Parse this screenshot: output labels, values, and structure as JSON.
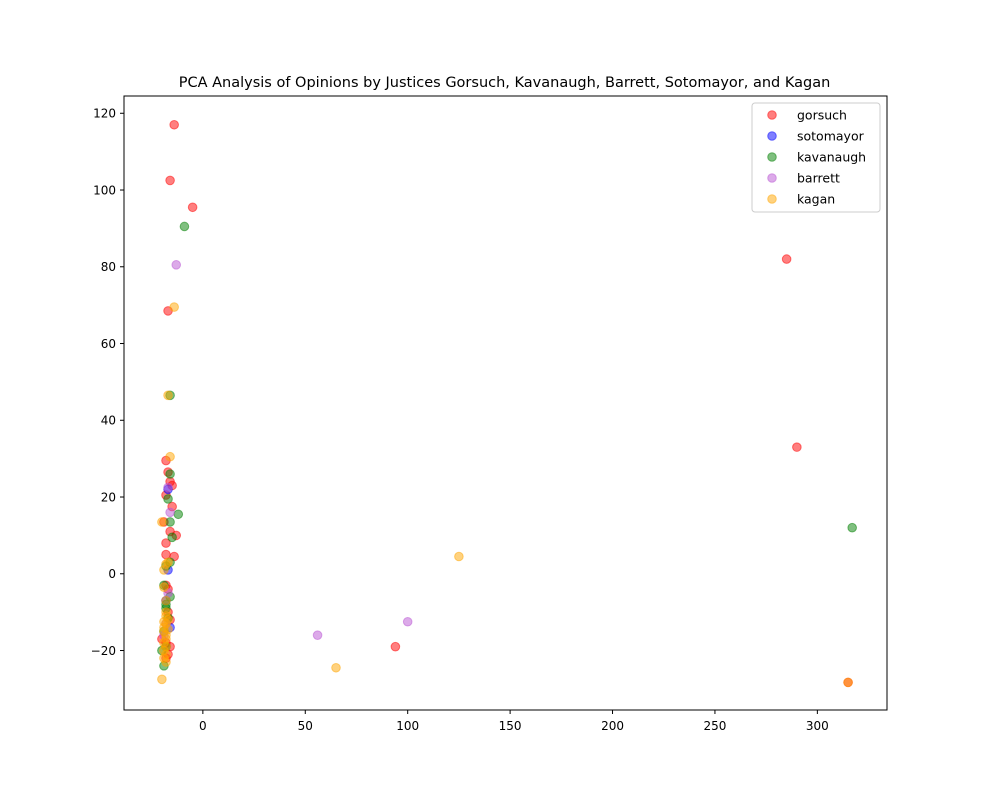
{
  "chart_data": {
    "type": "scatter",
    "title": "PCA Analysis of Opinions by Justices Gorsuch, Kavanaugh, Barrett, Sotomayor, and Kagan",
    "xlabel": "",
    "ylabel": "",
    "xlim": [
      -38.5,
      334
    ],
    "ylim": [
      -35.5,
      124.5
    ],
    "xticks": [
      0,
      50,
      100,
      150,
      200,
      250,
      300
    ],
    "yticks": [
      -20,
      0,
      20,
      40,
      60,
      80,
      100,
      120
    ],
    "grid": false,
    "legend_position": "top-right",
    "marker_alpha": 0.5,
    "series": [
      {
        "name": "gorsuch",
        "color": "#ff0000",
        "points": [
          [
            -14,
            117
          ],
          [
            -16,
            102.5
          ],
          [
            -5,
            95.5
          ],
          [
            285,
            82
          ],
          [
            -17,
            68.5
          ],
          [
            290,
            33
          ],
          [
            -17,
            26.5
          ],
          [
            -16,
            24
          ],
          [
            -15,
            23
          ],
          [
            -15,
            17.5
          ],
          [
            -18,
            20.5
          ],
          [
            -13,
            10
          ],
          [
            -16,
            11
          ],
          [
            -14,
            4.5
          ],
          [
            -18,
            8
          ],
          [
            -18,
            5
          ],
          [
            -18,
            -3
          ],
          [
            -17,
            -4
          ],
          [
            -17,
            -10
          ],
          [
            -16,
            -12
          ],
          [
            -20,
            -17
          ],
          [
            -18,
            -18
          ],
          [
            -16,
            -19
          ],
          [
            -18,
            -22
          ],
          [
            -17,
            -21
          ],
          [
            94,
            -19
          ],
          [
            315,
            -28.3
          ],
          [
            -19,
            13.5
          ],
          [
            -18,
            29.5
          ]
        ]
      },
      {
        "name": "sotomayor",
        "color": "#0000ff",
        "points": [
          [
            -17,
            1
          ],
          [
            -16,
            -14
          ],
          [
            -18,
            -7
          ],
          [
            -17,
            22
          ]
        ]
      },
      {
        "name": "kavanaugh",
        "color": "#008000",
        "points": [
          [
            -9,
            90.5
          ],
          [
            -16,
            46.5
          ],
          [
            -16,
            26
          ],
          [
            -17,
            19.5
          ],
          [
            -12,
            15.5
          ],
          [
            -16,
            13.5
          ],
          [
            -15,
            9.5
          ],
          [
            -16,
            3
          ],
          [
            -18,
            2
          ],
          [
            -16,
            -6
          ],
          [
            -18,
            -9
          ],
          [
            -17,
            -11.5
          ],
          [
            -19,
            -15
          ],
          [
            -20,
            -20
          ],
          [
            -19,
            -24
          ],
          [
            -18,
            -19
          ],
          [
            317,
            12
          ],
          [
            -19,
            -3
          ],
          [
            -18,
            -8
          ]
        ]
      },
      {
        "name": "barrett",
        "color": "#ba55d3",
        "points": [
          [
            -13,
            80.5
          ],
          [
            -17,
            22.5
          ],
          [
            -16,
            16
          ],
          [
            56,
            -16
          ],
          [
            100,
            -12.5
          ],
          [
            -17,
            -5
          ],
          [
            -18,
            -13
          ],
          [
            -19,
            -16
          ]
        ]
      },
      {
        "name": "kagan",
        "color": "#ffa500",
        "points": [
          [
            -14,
            69.5
          ],
          [
            -17,
            46.5
          ],
          [
            -16,
            30.5
          ],
          [
            -20,
            13.5
          ],
          [
            -19,
            1
          ],
          [
            -18,
            2.5
          ],
          [
            -17,
            3
          ],
          [
            -19,
            -3.5
          ],
          [
            -18,
            -7
          ],
          [
            -18,
            -10
          ],
          [
            -17,
            -12
          ],
          [
            -18,
            -13
          ],
          [
            -19,
            -14
          ],
          [
            -19,
            -15
          ],
          [
            -18,
            -16
          ],
          [
            -19,
            -18
          ],
          [
            -18,
            -19
          ],
          [
            -19,
            -20
          ],
          [
            -18,
            -21
          ],
          [
            -19,
            -22
          ],
          [
            -18,
            -23
          ],
          [
            -20,
            -27.5
          ],
          [
            65,
            -24.5
          ],
          [
            125,
            4.5
          ],
          [
            315,
            -28.3
          ],
          [
            -18,
            -11
          ],
          [
            -19,
            -12.5
          ],
          [
            -17,
            -14.5
          ],
          [
            -18,
            -17
          ]
        ]
      }
    ]
  }
}
